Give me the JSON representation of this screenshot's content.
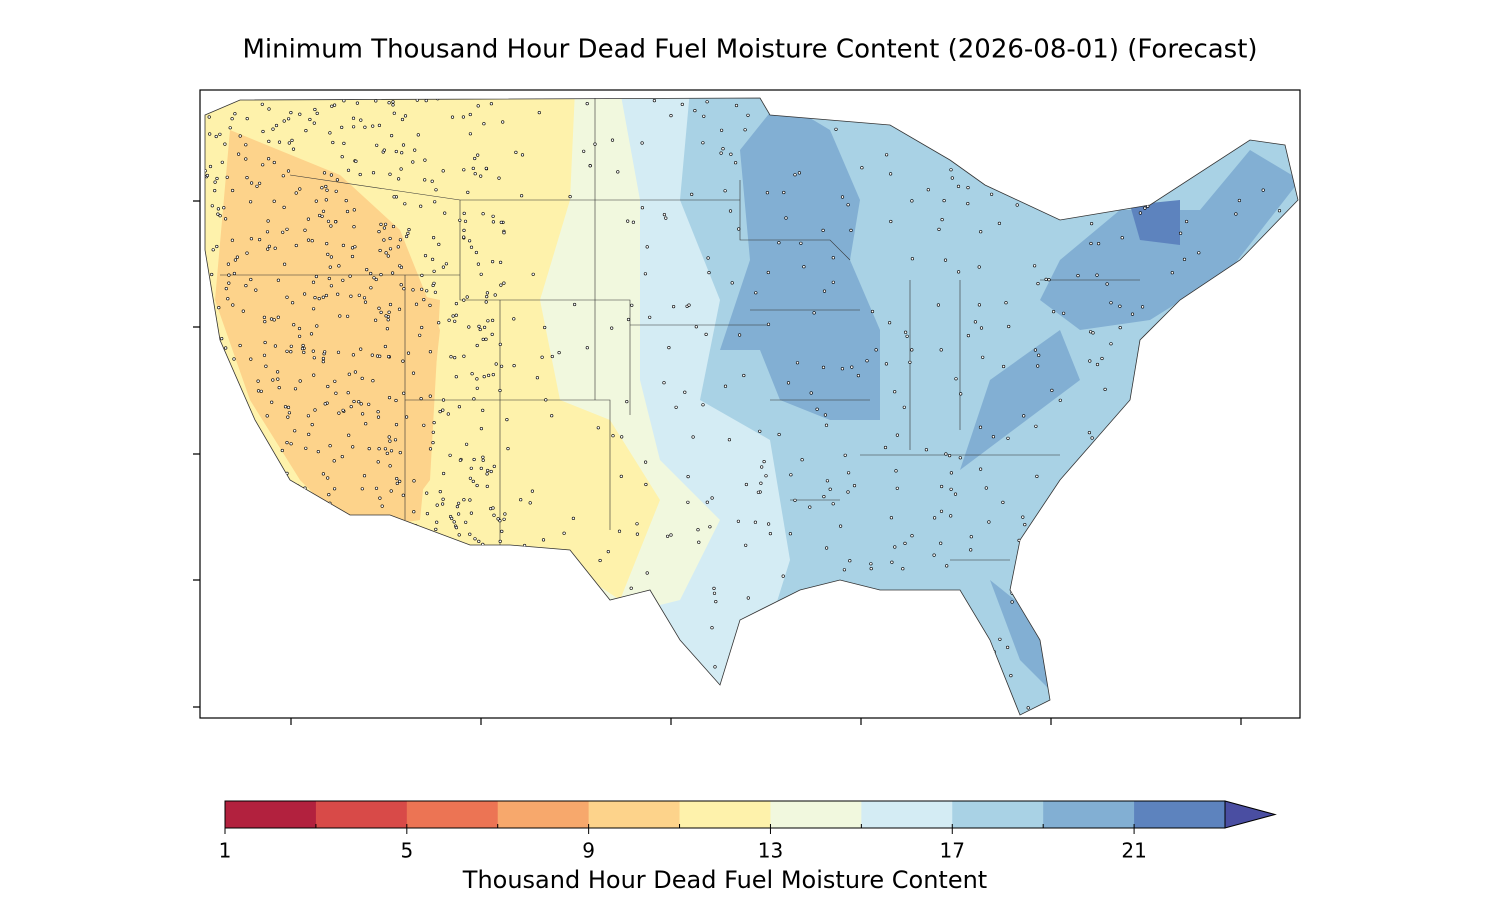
{
  "title": "Minimum Thousand Hour Dead Fuel Moisture Content (2026-08-01) (Forecast)",
  "colorbar": {
    "label": "Thousand Hour Dead Fuel Moisture Content",
    "bounds": [
      1,
      3,
      5,
      7,
      9,
      11,
      13,
      15,
      17,
      19,
      21,
      23
    ],
    "colors": [
      "#b2213e",
      "#d84a48",
      "#ec7454",
      "#f7a86c",
      "#fdd38b",
      "#fef2ab",
      "#f1f8de",
      "#d4ecf4",
      "#a9d2e5",
      "#82afd3",
      "#5d83be"
    ],
    "extend_color": "#4a4ea2",
    "ticks": [
      1,
      5,
      9,
      13,
      17,
      21
    ]
  }
}
